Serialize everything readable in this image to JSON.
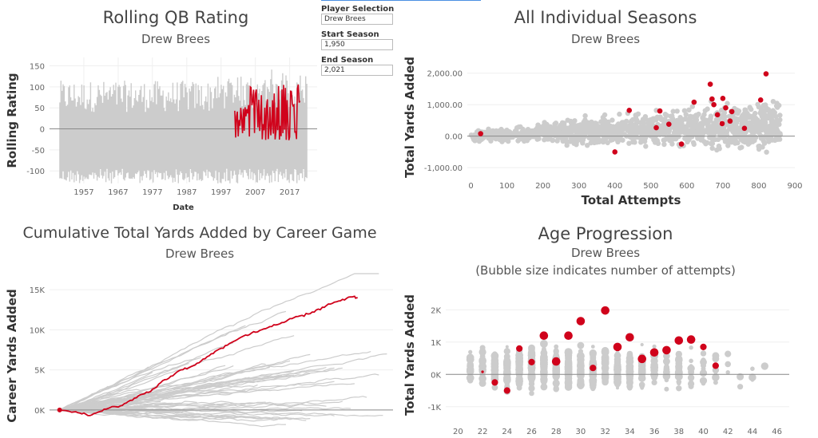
{
  "colors": {
    "highlight": "#d0021b",
    "others": "#cccccc",
    "zero_line": "#8a8a8a",
    "grid": "#efefef",
    "axis_text": "#666666"
  },
  "controls": {
    "player_label": "Player Selection",
    "player_value": "Drew Brees",
    "start_label": "Start Season",
    "start_value": "1,950",
    "end_label": "End Season",
    "end_value": "2,021"
  },
  "chart_data": [
    {
      "id": "rolling",
      "type": "line",
      "title": "Rolling QB Rating",
      "subtitle": "Drew Brees",
      "xlabel": "Date",
      "ylabel": "Rolling Rating",
      "xlim": [
        1947,
        2025
      ],
      "ylim": [
        -130,
        170
      ],
      "xticks": [
        1957,
        1967,
        1977,
        1987,
        1997,
        2007,
        2017
      ],
      "yticks": [
        150,
        100,
        50,
        0,
        -50,
        -100
      ],
      "ytick_labels": [
        "150",
        "100",
        "50",
        "0",
        "-50",
        "-100"
      ],
      "highlight_start": 2001,
      "highlight_end": 2020
    },
    {
      "id": "seasons",
      "type": "scatter",
      "title": "All Individual Seasons",
      "subtitle": "Drew Brees",
      "xlabel": "Total Attempts",
      "ylabel": "Total Yards Added",
      "xlim": [
        -10,
        900
      ],
      "ylim": [
        -1300,
        2500
      ],
      "xticks": [
        0,
        100,
        200,
        300,
        400,
        500,
        600,
        700,
        800,
        900
      ],
      "yticks": [
        2000,
        1000,
        0,
        -1000
      ],
      "ytick_labels": [
        "2,000.00",
        "1,000.00",
        "0.00",
        "-1,000.00"
      ],
      "highlight_points": [
        [
          27,
          80
        ],
        [
          400,
          -500
        ],
        [
          440,
          820
        ],
        [
          515,
          270
        ],
        [
          525,
          800
        ],
        [
          550,
          380
        ],
        [
          585,
          -250
        ],
        [
          620,
          1080
        ],
        [
          665,
          1650
        ],
        [
          670,
          1180
        ],
        [
          675,
          1000
        ],
        [
          685,
          680
        ],
        [
          698,
          400
        ],
        [
          700,
          1200
        ],
        [
          708,
          900
        ],
        [
          720,
          480
        ],
        [
          725,
          780
        ],
        [
          760,
          250
        ],
        [
          805,
          1150
        ],
        [
          820,
          1980
        ]
      ]
    },
    {
      "id": "cumulative",
      "type": "line",
      "title": "Cumulative Total Yards Added by Career Game",
      "subtitle": "Drew Brees",
      "xlabel": "",
      "ylabel": "Career Yards Added",
      "xlim": [
        -10,
        330
      ],
      "ylim": [
        -3500,
        17000
      ],
      "yticks": [
        15000,
        10000,
        5000,
        0
      ],
      "ytick_labels": [
        "15K",
        "10K",
        "5K",
        "0K"
      ],
      "highlight_path": [
        [
          0,
          0
        ],
        [
          10,
          -200
        ],
        [
          20,
          -400
        ],
        [
          30,
          -700
        ],
        [
          40,
          -200
        ],
        [
          50,
          300
        ],
        [
          60,
          500
        ],
        [
          70,
          1200
        ],
        [
          80,
          1900
        ],
        [
          90,
          2300
        ],
        [
          100,
          3400
        ],
        [
          110,
          4200
        ],
        [
          120,
          5000
        ],
        [
          130,
          5400
        ],
        [
          140,
          6100
        ],
        [
          150,
          7000
        ],
        [
          160,
          7700
        ],
        [
          170,
          8400
        ],
        [
          180,
          9100
        ],
        [
          190,
          9600
        ],
        [
          200,
          10000
        ],
        [
          210,
          10400
        ],
        [
          220,
          10900
        ],
        [
          230,
          11400
        ],
        [
          240,
          11800
        ],
        [
          250,
          12200
        ],
        [
          260,
          12800
        ],
        [
          270,
          13300
        ],
        [
          280,
          13800
        ],
        [
          290,
          14100
        ],
        [
          295,
          14000
        ]
      ]
    },
    {
      "id": "age",
      "type": "scatter",
      "title": "Age Progression",
      "subtitle": "Drew Brees",
      "note": "(Bubble size indicates number of attempts)",
      "xlabel": "",
      "ylabel": "Total Yards Added",
      "xlim": [
        19,
        47
      ],
      "ylim": [
        -1500,
        2700
      ],
      "xticks": [
        20,
        22,
        24,
        26,
        28,
        30,
        32,
        34,
        36,
        38,
        40,
        42,
        44,
        46
      ],
      "yticks": [
        2000,
        1000,
        0,
        -1000
      ],
      "ytick_labels": [
        "2K",
        "1K",
        "0K",
        "-1K"
      ],
      "highlight_points": [
        [
          22,
          80,
          1
        ],
        [
          23,
          -250,
          3
        ],
        [
          24,
          -500,
          3
        ],
        [
          25,
          800,
          3
        ],
        [
          26,
          380,
          3
        ],
        [
          27,
          1200,
          4
        ],
        [
          28,
          400,
          4
        ],
        [
          29,
          1200,
          4
        ],
        [
          30,
          1650,
          4
        ],
        [
          31,
          200,
          3
        ],
        [
          32,
          1980,
          4
        ],
        [
          33,
          850,
          4
        ],
        [
          34,
          1150,
          4
        ],
        [
          35,
          480,
          4
        ],
        [
          36,
          680,
          4
        ],
        [
          37,
          750,
          4
        ],
        [
          38,
          1050,
          4
        ],
        [
          39,
          1080,
          4
        ],
        [
          40,
          850,
          3
        ],
        [
          41,
          270,
          3
        ]
      ]
    }
  ]
}
